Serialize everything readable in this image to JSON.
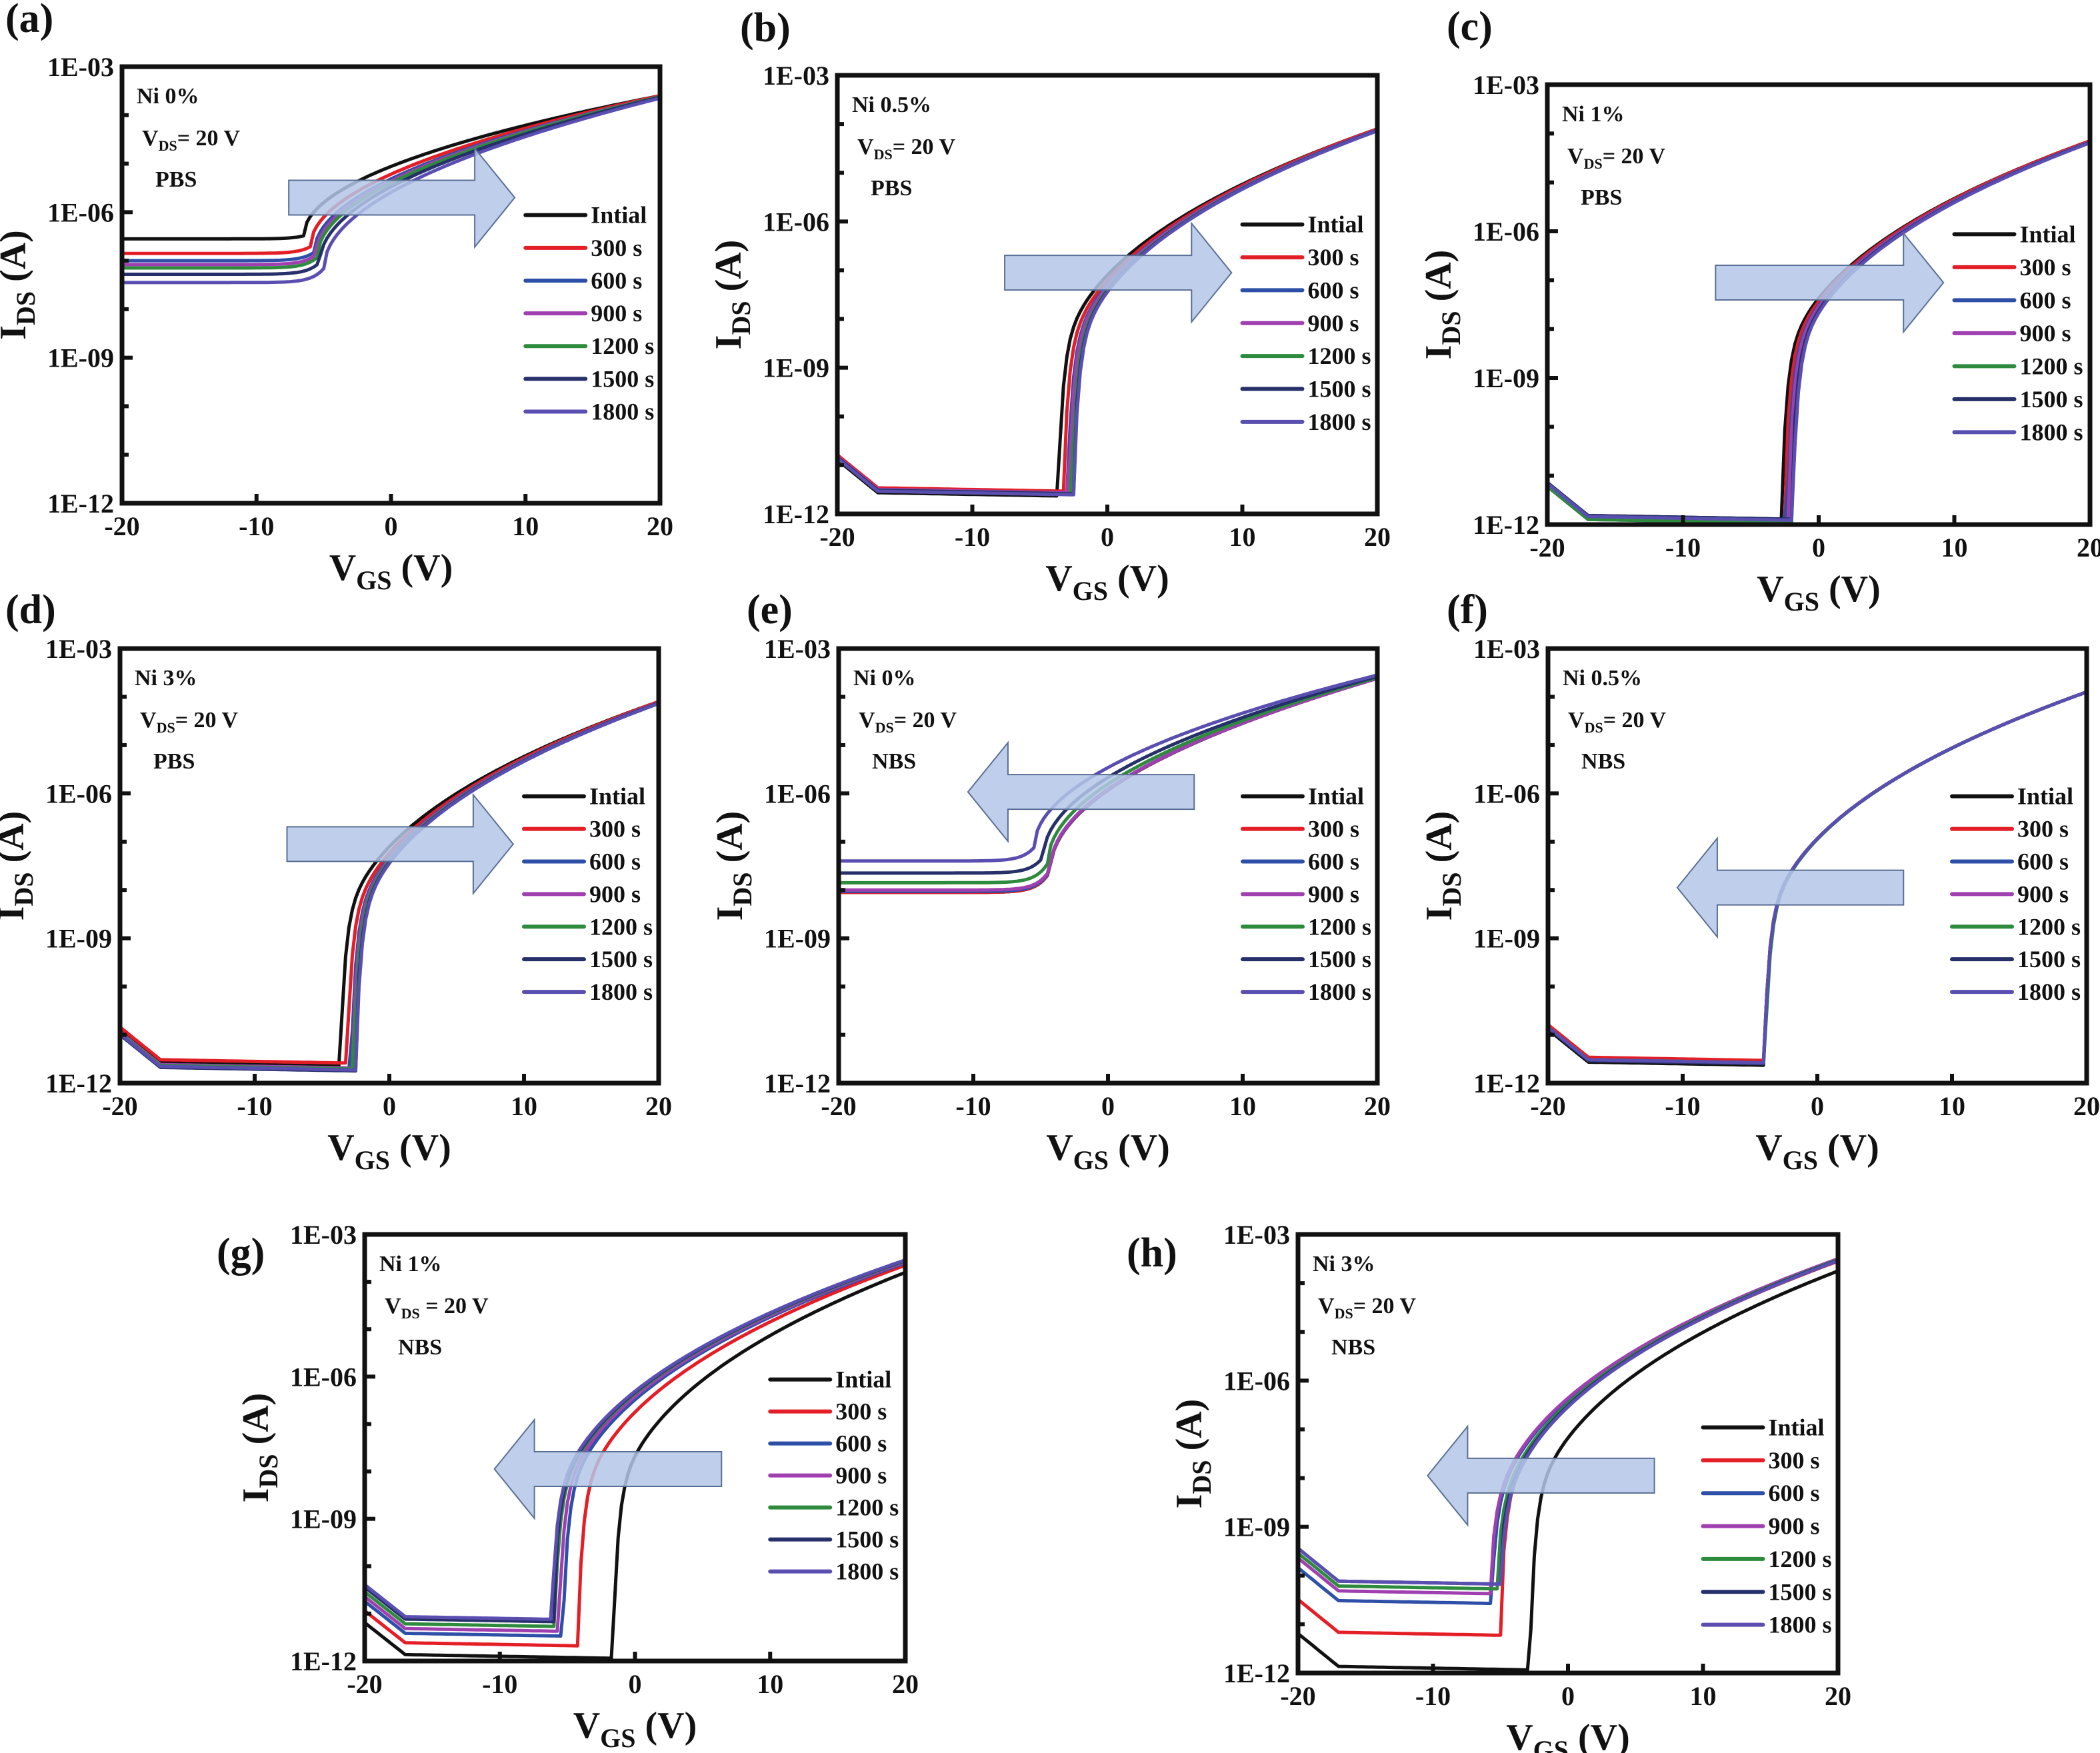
{
  "figure": {
    "legend_labels": [
      "Intial",
      "300 s",
      "600 s",
      "900 s",
      "1200 s",
      "1500 s",
      "1800 s"
    ],
    "series_colors": [
      "#111111",
      "#e41e26",
      "#2e4fa8",
      "#a040b0",
      "#2e8b3e",
      "#27306a",
      "#5a4fb0"
    ],
    "arrow_color": "#b4c7e7"
  },
  "chart_data": [
    {
      "id": "a",
      "panel_label": "(a)",
      "type": "line",
      "annotation": {
        "ni": "Ni 0%",
        "vds_prefix": "V",
        "vds_sub": "DS",
        "vds_suffix": "= 20 V",
        "stress": "PBS"
      },
      "shift_direction": "right",
      "xlabel": "V",
      "xlabel_sub": "GS",
      "xlabel_unit": " (V)",
      "ylabel": "I",
      "ylabel_sub": "DS",
      "ylabel_unit": " (A)",
      "xlim": [
        -20,
        20
      ],
      "ylim_log10": [
        -12,
        -3
      ],
      "xticks": [
        -20,
        -10,
        0,
        10,
        20
      ],
      "yticks": [
        "1E-12",
        "1E-09",
        "1E-06",
        "1E-03"
      ],
      "legend_placement": "center-right",
      "series": [
        {
          "name": "Intial",
          "off_log": -6.55,
          "vth": -6.5,
          "on_log20": -3.6,
          "kind": "soft"
        },
        {
          "name": "300 s",
          "off_log": -6.85,
          "vth": -6.0,
          "on_log20": -3.6,
          "kind": "soft"
        },
        {
          "name": "600 s",
          "off_log": -7.0,
          "vth": -5.7,
          "on_log20": -3.62,
          "kind": "soft"
        },
        {
          "name": "900 s",
          "off_log": -7.08,
          "vth": -5.6,
          "on_log20": -3.62,
          "kind": "soft"
        },
        {
          "name": "1200 s",
          "off_log": -7.15,
          "vth": -5.5,
          "on_log20": -3.62,
          "kind": "soft"
        },
        {
          "name": "1500 s",
          "off_log": -7.28,
          "vth": -5.3,
          "on_log20": -3.63,
          "kind": "soft"
        },
        {
          "name": "1800 s",
          "off_log": -7.45,
          "vth": -5.0,
          "on_log20": -3.65,
          "kind": "soft"
        }
      ]
    },
    {
      "id": "b",
      "panel_label": "(b)",
      "type": "line",
      "annotation": {
        "ni": "Ni 0.5%",
        "vds_prefix": "V",
        "vds_sub": "DS",
        "vds_suffix": "= 20 V",
        "stress": "PBS"
      },
      "shift_direction": "right",
      "xlabel": "V",
      "xlabel_sub": "GS",
      "xlabel_unit": " (V)",
      "ylabel": "I",
      "ylabel_sub": "DS",
      "ylabel_unit": " (A)",
      "xlim": [
        -20,
        20
      ],
      "ylim_log10": [
        -12,
        -3
      ],
      "xticks": [
        -20,
        -10,
        0,
        10,
        20
      ],
      "yticks": [
        "1E-12",
        "1E-09",
        "1E-06",
        "1E-03"
      ],
      "legend_placement": "center-right",
      "series": [
        {
          "name": "Intial",
          "off_log": -11.55,
          "vth": -3.6,
          "on_log20": -4.1,
          "kind": "sharp"
        },
        {
          "name": "300 s",
          "off_log": -11.45,
          "vth": -3.2,
          "on_log20": -4.1,
          "kind": "sharp"
        },
        {
          "name": "600 s",
          "off_log": -11.5,
          "vth": -2.9,
          "on_log20": -4.12,
          "kind": "sharp"
        },
        {
          "name": "900 s",
          "off_log": -11.48,
          "vth": -2.8,
          "on_log20": -4.12,
          "kind": "sharp"
        },
        {
          "name": "1200 s",
          "off_log": -11.5,
          "vth": -2.6,
          "on_log20": -4.13,
          "kind": "sharp"
        },
        {
          "name": "1500 s",
          "off_log": -11.5,
          "vth": -2.5,
          "on_log20": -4.13,
          "kind": "sharp"
        },
        {
          "name": "1800 s",
          "off_log": -11.52,
          "vth": -2.45,
          "on_log20": -4.14,
          "kind": "sharp"
        }
      ]
    },
    {
      "id": "c",
      "panel_label": "(c)",
      "type": "line",
      "annotation": {
        "ni": "Ni 1%",
        "vds_prefix": "V",
        "vds_sub": "DS",
        "vds_suffix": "= 20 V",
        "stress": "PBS"
      },
      "shift_direction": "right",
      "xlabel": "V",
      "xlabel_sub": "GS",
      "xlabel_unit": " (V)",
      "ylabel": "I",
      "ylabel_sub": "DS",
      "ylabel_unit": " (A)",
      "xlim": [
        -20,
        20
      ],
      "ylim_log10": [
        -12,
        -3
      ],
      "xticks": [
        -20,
        -10,
        0,
        10,
        20
      ],
      "yticks": [
        "1E-12",
        "1E-09",
        "1E-06",
        "1E-03"
      ],
      "legend_placement": "center-right",
      "series": [
        {
          "name": "Intial",
          "off_log": -11.8,
          "vth": -2.7,
          "on_log20": -4.15,
          "kind": "sharp"
        },
        {
          "name": "300 s",
          "off_log": -11.82,
          "vth": -2.5,
          "on_log20": -4.15,
          "kind": "sharp"
        },
        {
          "name": "600 s",
          "off_log": -11.85,
          "vth": -2.3,
          "on_log20": -4.17,
          "kind": "sharp"
        },
        {
          "name": "900 s",
          "off_log": -11.88,
          "vth": -2.2,
          "on_log20": -4.17,
          "kind": "sharp"
        },
        {
          "name": "1200 s",
          "off_log": -11.88,
          "vth": -2.0,
          "on_log20": -4.18,
          "kind": "sharp"
        },
        {
          "name": "1500 s",
          "off_log": -11.8,
          "vth": -2.0,
          "on_log20": -4.18,
          "kind": "sharp"
        },
        {
          "name": "1800 s",
          "off_log": -11.82,
          "vth": -1.9,
          "on_log20": -4.19,
          "kind": "sharp"
        }
      ]
    },
    {
      "id": "d",
      "panel_label": "(d)",
      "type": "line",
      "annotation": {
        "ni": "Ni 3%",
        "vds_prefix": "V",
        "vds_sub": "DS",
        "vds_suffix": "= 20 V",
        "stress": "PBS"
      },
      "shift_direction": "right",
      "xlabel": "V",
      "xlabel_sub": "GS",
      "xlabel_unit": " (V)",
      "ylabel": "I",
      "ylabel_sub": "DS",
      "ylabel_unit": " (A)",
      "xlim": [
        -20,
        20
      ],
      "ylim_log10": [
        -12,
        -3
      ],
      "xticks": [
        -20,
        -10,
        0,
        10,
        20
      ],
      "yticks": [
        "1E-12",
        "1E-09",
        "1E-06",
        "1E-03"
      ],
      "legend_placement": "center-right",
      "series": [
        {
          "name": "Intial",
          "off_log": -11.55,
          "vth": -3.6,
          "on_log20": -4.1,
          "kind": "sharp"
        },
        {
          "name": "300 s",
          "off_log": -11.5,
          "vth": -3.1,
          "on_log20": -4.1,
          "kind": "sharp"
        },
        {
          "name": "600 s",
          "off_log": -11.62,
          "vth": -2.8,
          "on_log20": -4.12,
          "kind": "sharp"
        },
        {
          "name": "900 s",
          "off_log": -11.6,
          "vth": -2.7,
          "on_log20": -4.12,
          "kind": "sharp"
        },
        {
          "name": "1200 s",
          "off_log": -11.62,
          "vth": -2.6,
          "on_log20": -4.13,
          "kind": "sharp"
        },
        {
          "name": "1500 s",
          "off_log": -11.66,
          "vth": -2.5,
          "on_log20": -4.13,
          "kind": "sharp"
        },
        {
          "name": "1800 s",
          "off_log": -11.64,
          "vth": -2.45,
          "on_log20": -4.14,
          "kind": "sharp"
        }
      ]
    },
    {
      "id": "e",
      "panel_label": "(e)",
      "type": "line",
      "annotation": {
        "ni": "Ni 0%",
        "vds_prefix": "V",
        "vds_sub": "DS",
        "vds_suffix": "= 20 V",
        "stress": "NBS"
      },
      "shift_direction": "left",
      "xlabel": "V",
      "xlabel_sub": "GS",
      "xlabel_unit": " (V)",
      "ylabel": "I",
      "ylabel_sub": "DS",
      "ylabel_unit": " (A)",
      "xlim": [
        -20,
        20
      ],
      "ylim_log10": [
        -12,
        -3
      ],
      "xticks": [
        -20,
        -10,
        0,
        10,
        20
      ],
      "yticks": [
        "1E-12",
        "1E-09",
        "1E-06",
        "1E-03"
      ],
      "legend_placement": "center-right",
      "series": [
        {
          "name": "Intial",
          "off_log": -8.05,
          "vth": -4.3,
          "on_log20": -3.6,
          "kind": "soft"
        },
        {
          "name": "300 s",
          "off_log": -8.05,
          "vth": -4.3,
          "on_log20": -3.62,
          "kind": "soft"
        },
        {
          "name": "600 s",
          "off_log": -8.03,
          "vth": -4.3,
          "on_log20": -3.62,
          "kind": "soft"
        },
        {
          "name": "900 s",
          "off_log": -8.0,
          "vth": -4.3,
          "on_log20": -3.62,
          "kind": "soft"
        },
        {
          "name": "1200 s",
          "off_log": -7.85,
          "vth": -4.5,
          "on_log20": -3.6,
          "kind": "soft"
        },
        {
          "name": "1500 s",
          "off_log": -7.65,
          "vth": -4.8,
          "on_log20": -3.58,
          "kind": "soft"
        },
        {
          "name": "1800 s",
          "off_log": -7.4,
          "vth": -5.5,
          "on_log20": -3.55,
          "kind": "soft"
        }
      ]
    },
    {
      "id": "f",
      "panel_label": "(f)",
      "type": "line",
      "annotation": {
        "ni": "Ni  0.5%",
        "vds_prefix": "V",
        "vds_sub": "DS",
        "vds_suffix": "= 20 V",
        "stress": "NBS"
      },
      "shift_direction": "left",
      "xlabel": "V",
      "xlabel_sub": "GS",
      "xlabel_unit": "  (V)",
      "ylabel": "I",
      "ylabel_sub": "DS",
      "ylabel_unit": "  (A)",
      "xlim": [
        -20,
        20
      ],
      "ylim_log10": [
        -12,
        -3
      ],
      "xticks": [
        -20,
        -10,
        0,
        10,
        20
      ],
      "yticks": [
        "1E-12",
        "1E-09",
        "1E-06",
        "1E-03"
      ],
      "legend_placement": "center-right",
      "series": [
        {
          "name": "Intial",
          "off_log": -11.55,
          "vth": -3.9,
          "on_log20": -3.9,
          "kind": "sharp"
        },
        {
          "name": "300 s",
          "off_log": -11.45,
          "vth": -3.9,
          "on_log20": -3.9,
          "kind": "sharp"
        },
        {
          "name": "600 s",
          "off_log": -11.5,
          "vth": -3.9,
          "on_log20": -3.9,
          "kind": "sharp"
        },
        {
          "name": "900 s",
          "off_log": -11.5,
          "vth": -3.9,
          "on_log20": -3.9,
          "kind": "sharp"
        },
        {
          "name": "1200 s",
          "off_log": -11.5,
          "vth": -3.85,
          "on_log20": -3.9,
          "kind": "sharp"
        },
        {
          "name": "1500 s",
          "off_log": -11.52,
          "vth": -3.9,
          "on_log20": -3.9,
          "kind": "sharp"
        },
        {
          "name": "1800 s",
          "off_log": -11.5,
          "vth": -3.9,
          "on_log20": -3.9,
          "kind": "sharp"
        }
      ]
    },
    {
      "id": "g",
      "panel_label": "(g)",
      "type": "line",
      "annotation": {
        "ni": "Ni 1%",
        "vds_prefix": "V",
        "vds_sub": "DS",
        "vds_suffix": " = 20 V",
        "stress": "NBS"
      },
      "shift_direction": "left",
      "xlabel": "V",
      "xlabel_sub": "GS",
      "xlabel_unit": " (V)",
      "ylabel": "I",
      "ylabel_sub": "DS",
      "ylabel_unit": " (A)",
      "xlim": [
        -20,
        20
      ],
      "ylim_log10": [
        -12,
        -3
      ],
      "xticks": [
        -20,
        -10,
        0,
        10,
        20
      ],
      "yticks": [
        "1E-12",
        "1E-09",
        "1E-06",
        "1E-03"
      ],
      "legend_placement": "center-right",
      "series": [
        {
          "name": "Intial",
          "off_log": -11.85,
          "vth": -1.6,
          "on_log20": -3.8,
          "kind": "sharp"
        },
        {
          "name": "300 s",
          "off_log": -11.6,
          "vth": -4.2,
          "on_log20": -3.65,
          "kind": "sharp"
        },
        {
          "name": "600 s",
          "off_log": -11.4,
          "vth": -5.3,
          "on_log20": -3.6,
          "kind": "sharp"
        },
        {
          "name": "900 s",
          "off_log": -11.3,
          "vth": -5.6,
          "on_log20": -3.58,
          "kind": "sharp"
        },
        {
          "name": "1200 s",
          "off_log": -11.2,
          "vth": -5.9,
          "on_log20": -3.56,
          "kind": "sharp"
        },
        {
          "name": "1500 s",
          "off_log": -11.1,
          "vth": -6.0,
          "on_log20": -3.55,
          "kind": "sharp"
        },
        {
          "name": "1800 s",
          "off_log": -11.05,
          "vth": -6.1,
          "on_log20": -3.54,
          "kind": "sharp"
        }
      ]
    },
    {
      "id": "h",
      "panel_label": "(h)",
      "type": "line",
      "annotation": {
        "ni": "Ni  3%",
        "vds_prefix": "V",
        "vds_sub": "DS",
        "vds_suffix": "= 20 V",
        "stress": "NBS"
      },
      "shift_direction": "left",
      "xlabel": "V",
      "xlabel_sub": "GS",
      "xlabel_unit": " (V)",
      "ylabel": "I",
      "ylabel_sub": "DS",
      "ylabel_unit": " (A)",
      "xlim": [
        -20,
        20
      ],
      "ylim_log10": [
        -12,
        -3
      ],
      "xticks": [
        -20,
        -10,
        0,
        10,
        20
      ],
      "yticks": [
        "1E-12",
        "1E-09",
        "1E-06",
        "1E-03"
      ],
      "legend_placement": "center-right",
      "series": [
        {
          "name": "Intial",
          "off_log": -11.85,
          "vth": -2.8,
          "on_log20": -3.75,
          "kind": "sharp"
        },
        {
          "name": "300 s",
          "off_log": -11.15,
          "vth": -5.0,
          "on_log20": -3.55,
          "kind": "sharp"
        },
        {
          "name": "600 s",
          "off_log": -10.5,
          "vth": -5.6,
          "on_log20": -3.52,
          "kind": "sharp"
        },
        {
          "name": "900 s",
          "off_log": -10.3,
          "vth": -5.7,
          "on_log20": -3.5,
          "kind": "sharp"
        },
        {
          "name": "1200 s",
          "off_log": -10.2,
          "vth": -5.2,
          "on_log20": -3.52,
          "kind": "sharp"
        },
        {
          "name": "1500 s",
          "off_log": -10.1,
          "vth": -5.0,
          "on_log20": -3.53,
          "kind": "sharp"
        },
        {
          "name": "1800 s",
          "off_log": -10.1,
          "vth": -4.9,
          "on_log20": -3.54,
          "kind": "sharp"
        }
      ]
    }
  ]
}
